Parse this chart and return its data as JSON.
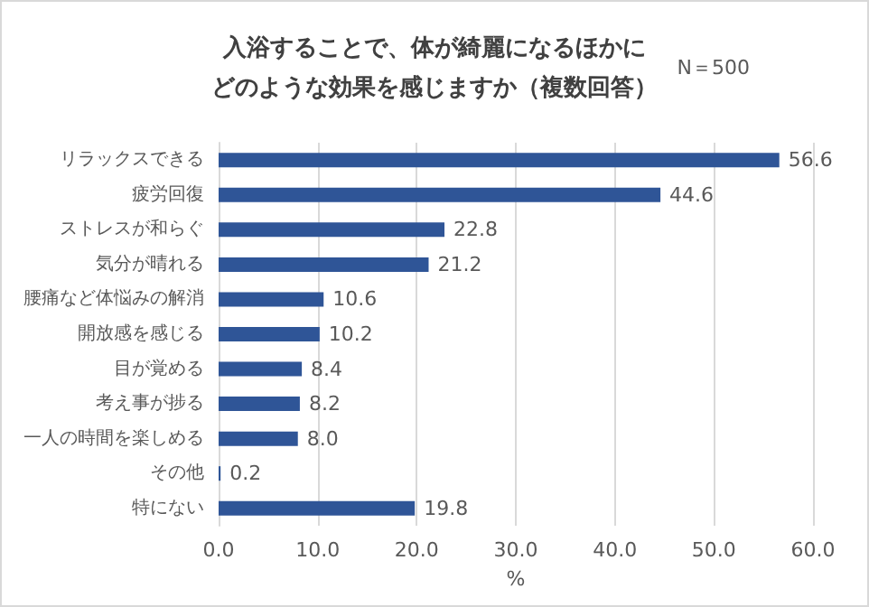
{
  "chart_data": {
    "type": "bar",
    "orientation": "horizontal",
    "title": "入浴することで、体が綺麗になるほかにどのような効果を感じますか（複数回答）",
    "xlabel": "%",
    "annotations": [
      "N＝500"
    ],
    "categories": [
      "リラックスできる",
      "疲労回復",
      "ストレスが和らぐ",
      "気分が晴れる",
      "腰痛など体悩みの解消",
      "開放感を感じる",
      "目が覚める",
      "考え事が捗る",
      "一人の時間を楽しめる",
      "その他",
      "特にない"
    ],
    "values": [
      56.6,
      44.6,
      22.8,
      21.2,
      10.6,
      10.2,
      8.4,
      8.2,
      8.0,
      0.2,
      19.8
    ],
    "value_labels": [
      "56.6",
      "44.6",
      "22.8",
      "21.2",
      "10.6",
      "10.2",
      "8.4",
      "8.2",
      "8.0",
      "0.2",
      "19.8"
    ],
    "color": "#2f5597",
    "xlim": [
      0,
      60
    ],
    "xticks": [
      {
        "value": 0,
        "label": "0.0"
      },
      {
        "value": 10,
        "label": "10.0"
      },
      {
        "value": 20,
        "label": "20.0"
      },
      {
        "value": 30,
        "label": "30.0"
      },
      {
        "value": 40,
        "label": "40.0"
      },
      {
        "value": 50,
        "label": "50.0"
      },
      {
        "value": 60,
        "label": "60.0"
      }
    ],
    "grid": "x"
  }
}
